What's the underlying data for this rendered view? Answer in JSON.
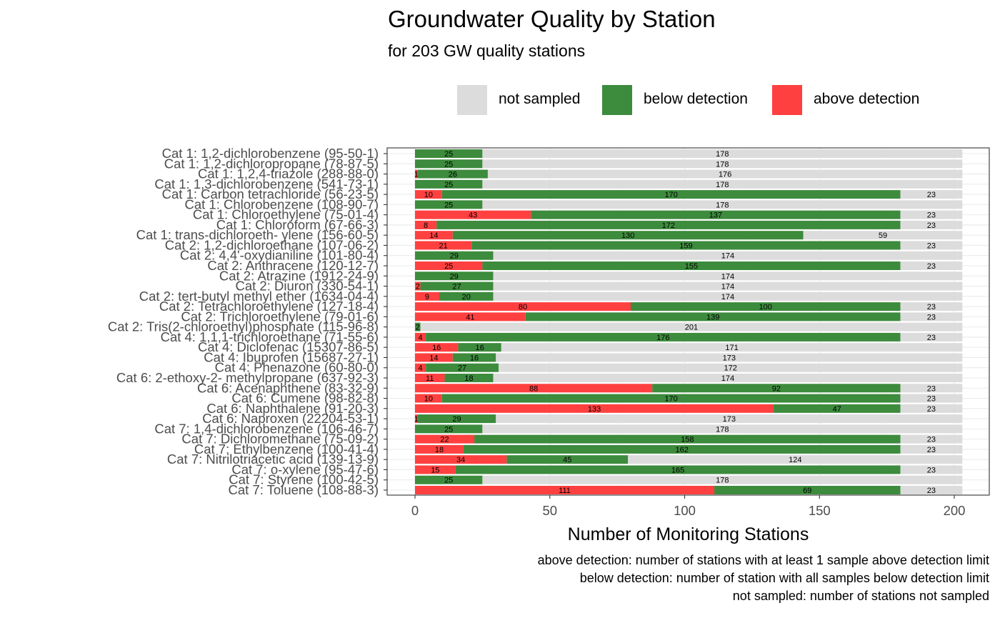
{
  "chart_data": {
    "type": "bar",
    "orientation": "horizontal",
    "stacked": true,
    "title": "Groundwater Quality by Station",
    "subtitle": "for 203 GW quality stations",
    "xlabel": "Number of Monitoring Stations",
    "ylabel": "",
    "xlim": [
      -10.5,
      213.5
    ],
    "xticks": [
      0,
      50,
      100,
      150,
      200
    ],
    "grid": true,
    "legend_position": "top-right",
    "colors": {
      "above detection": "#ff4040",
      "below detection": "#3d8b3d",
      "not sampled": "#dcdcdc"
    },
    "legend": [
      "not sampled",
      "below detection",
      "above detection"
    ],
    "categories": [
      "Cat 1: 1,2-dichlorobenzene (95-50-1)",
      "Cat 1: 1,2-dichloropropane (78-87-5)",
      "Cat 1: 1,2,4-triazole (288-88-0)",
      "Cat 1: 1,3-dichlorobenzene (541-73-1)",
      "Cat 1: Carbon tetrachloride (56-23-5)",
      "Cat 1: Chlorobenzene (108-90-7)",
      "Cat 1: Chloroethylene (75-01-4)",
      "Cat 1: Chloroform (67-66-3)",
      "Cat 1: trans-dichloroeth- ylene (156-60-5)",
      "Cat 2: 1,2-dichloroethane (107-06-2)",
      "Cat 2: 4,4'-oxydianiline (101-80-4)",
      "Cat 2: Anthracene (120-12-7)",
      "Cat 2: Atrazine (1912-24-9)",
      "Cat 2: Diuron (330-54-1)",
      "Cat 2: tert-butyl methyl ether (1634-04-4)",
      "Cat 2: Tetrachloroethylene (127-18-4)",
      "Cat 2: Trichloroethylene (79-01-6)",
      "Cat 2: Tris(2-chloroethyl)phosphate (115-96-8)",
      "Cat 4: 1,1,1-trichloroethane (71-55-6)",
      "Cat 4: Diclofenac (15307-86-5)",
      "Cat 4: Ibuprofen (15687-27-1)",
      "Cat 4: Phenazone (60-80-0)",
      "Cat 6: 2-ethoxy-2- methylpropane (637-92-3)",
      "Cat 6: Acenaphthene (83-32-9)",
      "Cat 6: Cumene (98-82-8)",
      "Cat 6: Naphthalene (91-20-3)",
      "Cat 6: Naproxen (22204-53-1)",
      "Cat 7: 1,4-dichlorobenzene (106-46-7)",
      "Cat 7: Dichloromethane (75-09-2)",
      "Cat 7: Ethylbenzene (100-41-4)",
      "Cat 7: Nitrilotriacetic acid (139-13-9)",
      "Cat 7: o-xylene (95-47-6)",
      "Cat 7: Styrene (100-42-5)",
      "Cat 7: Toluene (108-88-3)"
    ],
    "series": [
      {
        "name": "above detection",
        "values": [
          0,
          0,
          1,
          0,
          10,
          0,
          43,
          8,
          14,
          21,
          0,
          25,
          0,
          2,
          9,
          80,
          41,
          0,
          4,
          16,
          14,
          4,
          11,
          88,
          10,
          133,
          1,
          0,
          22,
          18,
          34,
          15,
          0,
          111
        ]
      },
      {
        "name": "below detection",
        "values": [
          25,
          25,
          26,
          25,
          170,
          25,
          137,
          172,
          130,
          159,
          29,
          155,
          29,
          27,
          20,
          100,
          139,
          2,
          176,
          16,
          16,
          27,
          18,
          92,
          170,
          47,
          29,
          25,
          158,
          162,
          45,
          165,
          25,
          69
        ]
      },
      {
        "name": "not sampled",
        "values": [
          178,
          178,
          176,
          178,
          23,
          178,
          23,
          23,
          59,
          23,
          174,
          23,
          174,
          174,
          174,
          23,
          23,
          201,
          23,
          171,
          173,
          172,
          174,
          23,
          23,
          23,
          173,
          178,
          23,
          23,
          124,
          23,
          178,
          23
        ]
      }
    ]
  },
  "captions": [
    "above detection: number of stations with at least 1 sample above detection limit",
    "below detection: number of station with all samples below detection limit",
    "not sampled: number of stations not sampled"
  ]
}
